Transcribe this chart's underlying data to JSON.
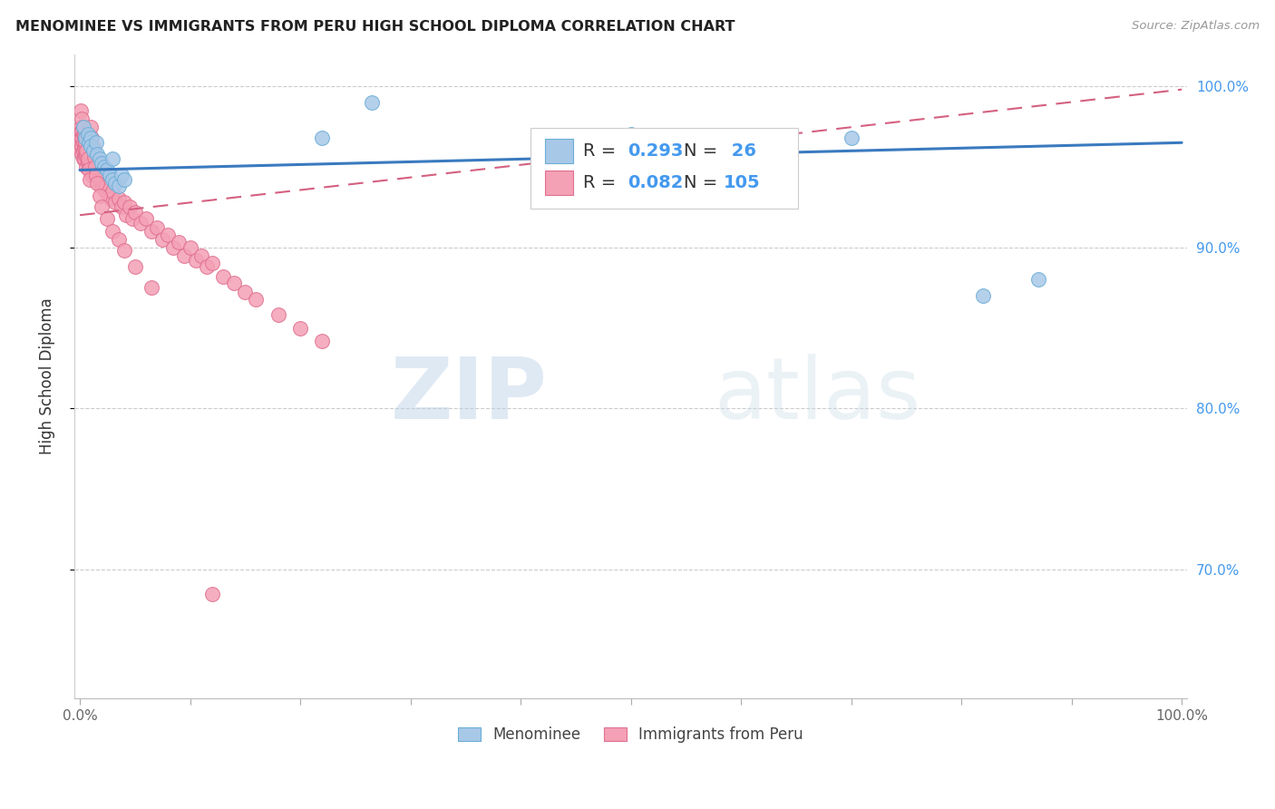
{
  "title": "MENOMINEE VS IMMIGRANTS FROM PERU HIGH SCHOOL DIPLOMA CORRELATION CHART",
  "source": "Source: ZipAtlas.com",
  "ylabel": "High School Diploma",
  "color_blue": "#a8c8e8",
  "color_pink": "#f4a0b5",
  "color_blue_edge": "#6baed6",
  "color_pink_edge": "#e07090",
  "color_blue_line": "#3a7abf",
  "color_pink_line": "#d46080",
  "color_blue_text": "#4499ee",
  "color_right_ticks": "#4499ee",
  "watermark_color": "#cce0f0",
  "legend_r1": "R = 0.293",
  "legend_n1": "N =  26",
  "legend_r2": "R = 0.082",
  "legend_n2": "N = 105",
  "menominee_x": [
    0.003,
    0.005,
    0.007,
    0.008,
    0.01,
    0.01,
    0.012,
    0.015,
    0.016,
    0.018,
    0.02,
    0.022,
    0.025,
    0.027,
    0.03,
    0.03,
    0.032,
    0.035,
    0.038,
    0.04,
    0.22,
    0.265,
    0.5,
    0.7,
    0.82,
    0.87
  ],
  "menominee_y": [
    0.975,
    0.968,
    0.97,
    0.965,
    0.968,
    0.963,
    0.96,
    0.965,
    0.958,
    0.955,
    0.952,
    0.95,
    0.948,
    0.945,
    0.955,
    0.942,
    0.94,
    0.938,
    0.945,
    0.942,
    0.968,
    0.99,
    0.97,
    0.968,
    0.87,
    0.88
  ],
  "peru_x": [
    0.001,
    0.001,
    0.001,
    0.001,
    0.001,
    0.002,
    0.002,
    0.002,
    0.002,
    0.003,
    0.003,
    0.003,
    0.003,
    0.004,
    0.004,
    0.004,
    0.005,
    0.005,
    0.005,
    0.006,
    0.006,
    0.006,
    0.007,
    0.007,
    0.008,
    0.008,
    0.009,
    0.009,
    0.01,
    0.01,
    0.011,
    0.011,
    0.012,
    0.012,
    0.013,
    0.014,
    0.015,
    0.015,
    0.016,
    0.017,
    0.018,
    0.019,
    0.02,
    0.02,
    0.021,
    0.022,
    0.023,
    0.025,
    0.026,
    0.028,
    0.03,
    0.032,
    0.035,
    0.038,
    0.04,
    0.042,
    0.045,
    0.048,
    0.05,
    0.055,
    0.06,
    0.065,
    0.07,
    0.075,
    0.08,
    0.085,
    0.09,
    0.095,
    0.1,
    0.105,
    0.11,
    0.115,
    0.12,
    0.13,
    0.14,
    0.15,
    0.16,
    0.18,
    0.2,
    0.22,
    0.001,
    0.002,
    0.003,
    0.004,
    0.005,
    0.006,
    0.007,
    0.008,
    0.009,
    0.01,
    0.011,
    0.012,
    0.013,
    0.014,
    0.015,
    0.016,
    0.018,
    0.02,
    0.025,
    0.03,
    0.035,
    0.04,
    0.05,
    0.065,
    0.12
  ],
  "peru_y": [
    0.975,
    0.972,
    0.968,
    0.965,
    0.96,
    0.972,
    0.968,
    0.963,
    0.958,
    0.97,
    0.965,
    0.96,
    0.955,
    0.968,
    0.962,
    0.955,
    0.97,
    0.963,
    0.957,
    0.965,
    0.958,
    0.95,
    0.96,
    0.953,
    0.958,
    0.95,
    0.955,
    0.948,
    0.96,
    0.952,
    0.952,
    0.945,
    0.955,
    0.948,
    0.95,
    0.945,
    0.955,
    0.948,
    0.945,
    0.942,
    0.942,
    0.938,
    0.948,
    0.94,
    0.94,
    0.937,
    0.935,
    0.938,
    0.932,
    0.93,
    0.935,
    0.928,
    0.93,
    0.925,
    0.928,
    0.92,
    0.925,
    0.918,
    0.922,
    0.915,
    0.918,
    0.91,
    0.912,
    0.905,
    0.908,
    0.9,
    0.903,
    0.895,
    0.9,
    0.892,
    0.895,
    0.888,
    0.89,
    0.882,
    0.878,
    0.872,
    0.868,
    0.858,
    0.85,
    0.842,
    0.985,
    0.98,
    0.975,
    0.97,
    0.965,
    0.96,
    0.955,
    0.948,
    0.942,
    0.975,
    0.968,
    0.962,
    0.956,
    0.95,
    0.945,
    0.94,
    0.932,
    0.925,
    0.918,
    0.91,
    0.905,
    0.898,
    0.888,
    0.875,
    0.685
  ],
  "xlim": [
    0.0,
    1.0
  ],
  "ylim": [
    0.62,
    1.02
  ],
  "yticks": [
    0.7,
    0.8,
    0.9,
    1.0
  ],
  "ytick_labels_right": [
    "70.0%",
    "80.0%",
    "90.0%",
    "100.0%"
  ],
  "xticks": [
    0.0,
    0.1,
    0.2,
    0.3,
    0.4,
    0.5,
    0.6,
    0.7,
    0.8,
    0.9,
    1.0
  ],
  "xtick_labels": [
    "0.0%",
    "",
    "",
    "",
    "",
    "",
    "",
    "",
    "",
    "",
    "100.0%"
  ],
  "blue_line_x0": 0.0,
  "blue_line_y0": 0.948,
  "blue_line_x1": 1.0,
  "blue_line_y1": 0.965,
  "pink_line_x0": 0.0,
  "pink_line_y0": 0.92,
  "pink_line_x1": 1.0,
  "pink_line_y1": 0.998
}
